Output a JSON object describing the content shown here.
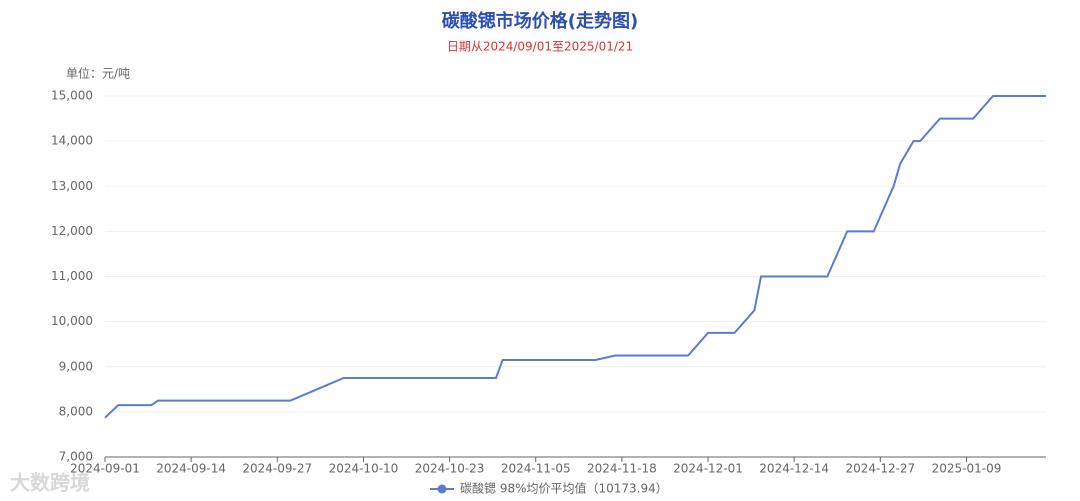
{
  "chart_data": {
    "type": "line",
    "title": "碳酸锶市场价格(走势图)",
    "subtitle": "日期从2024/09/01至2025/01/21",
    "y_unit": "单位：元/吨",
    "watermark": "大数跨境",
    "x": [
      "2024-09-01",
      "2024-09-03",
      "2024-09-08",
      "2024-09-09",
      "2024-09-29",
      "2024-10-07",
      "2024-10-30",
      "2024-10-31",
      "2024-11-14",
      "2024-11-17",
      "2024-11-28",
      "2024-12-01",
      "2024-12-05",
      "2024-12-08",
      "2024-12-09",
      "2024-12-19",
      "2024-12-22",
      "2024-12-26",
      "2024-12-29",
      "2024-12-30",
      "2025-01-01",
      "2025-01-02",
      "2025-01-05",
      "2025-01-10",
      "2025-01-13",
      "2025-01-21"
    ],
    "series": [
      {
        "name": "碳酸锶 98%均价平均值（10173.94）",
        "color": "#5b7bd5",
        "values": [
          7870,
          8150,
          8150,
          8250,
          8250,
          8750,
          8750,
          9150,
          9150,
          9250,
          9250,
          9750,
          9750,
          10250,
          11000,
          11000,
          12000,
          12000,
          13000,
          13500,
          14000,
          14000,
          14500,
          14500,
          15000,
          15000
        ]
      }
    ],
    "xlim": [
      "2024-09-01",
      "2025-01-21"
    ],
    "xticks": [
      "2024-09-01",
      "2024-09-14",
      "2024-09-27",
      "2024-10-10",
      "2024-10-23",
      "2024-11-05",
      "2024-11-18",
      "2024-12-01",
      "2024-12-14",
      "2024-12-27",
      "2025-01-09"
    ],
    "ylim": [
      7000,
      15000
    ],
    "yticks": [
      {
        "value": 7000,
        "label": "7,000"
      },
      {
        "value": 8000,
        "label": "8,000"
      },
      {
        "value": 9000,
        "label": "9,000"
      },
      {
        "value": 10000,
        "label": "10,000"
      },
      {
        "value": 11000,
        "label": "11,000"
      },
      {
        "value": 12000,
        "label": "12,000"
      },
      {
        "value": 13000,
        "label": "13,000"
      },
      {
        "value": 14000,
        "label": "14,000"
      },
      {
        "value": 15000,
        "label": "15,000"
      }
    ],
    "grid": true
  }
}
